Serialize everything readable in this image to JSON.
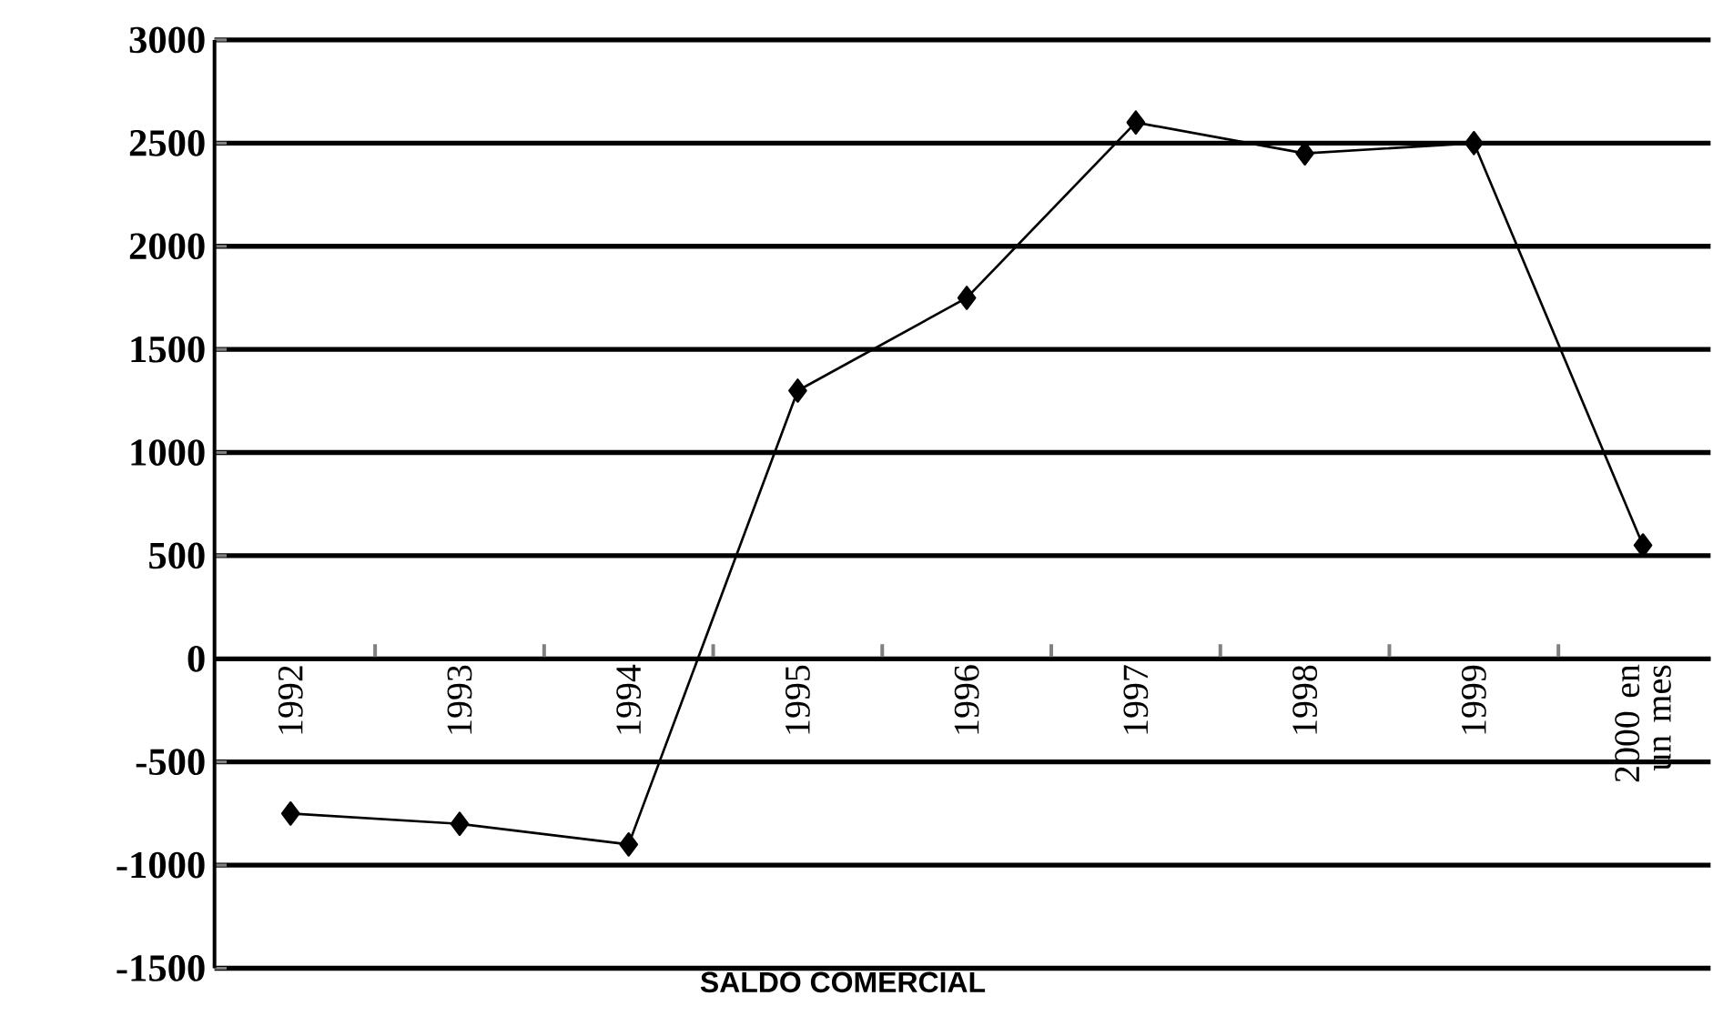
{
  "chart_data": {
    "type": "line",
    "title": "SALDO COMERCIAL",
    "categories": [
      "1992",
      "1993",
      "1994",
      "1995",
      "1996",
      "1997",
      "1998",
      "1999",
      "2000 en un mes"
    ],
    "series": [
      {
        "color": "#000000",
        "values": [
          -750,
          -800,
          -900,
          1300,
          1750,
          2600,
          2450,
          2500,
          550
        ]
      }
    ],
    "ylim": [
      -1500,
      3000
    ],
    "yticks": [
      -1500,
      -1000,
      -500,
      0,
      500,
      1000,
      1500,
      2000,
      2500,
      3000
    ],
    "grid": "y",
    "marker": "diamond",
    "line_style": "solid"
  }
}
